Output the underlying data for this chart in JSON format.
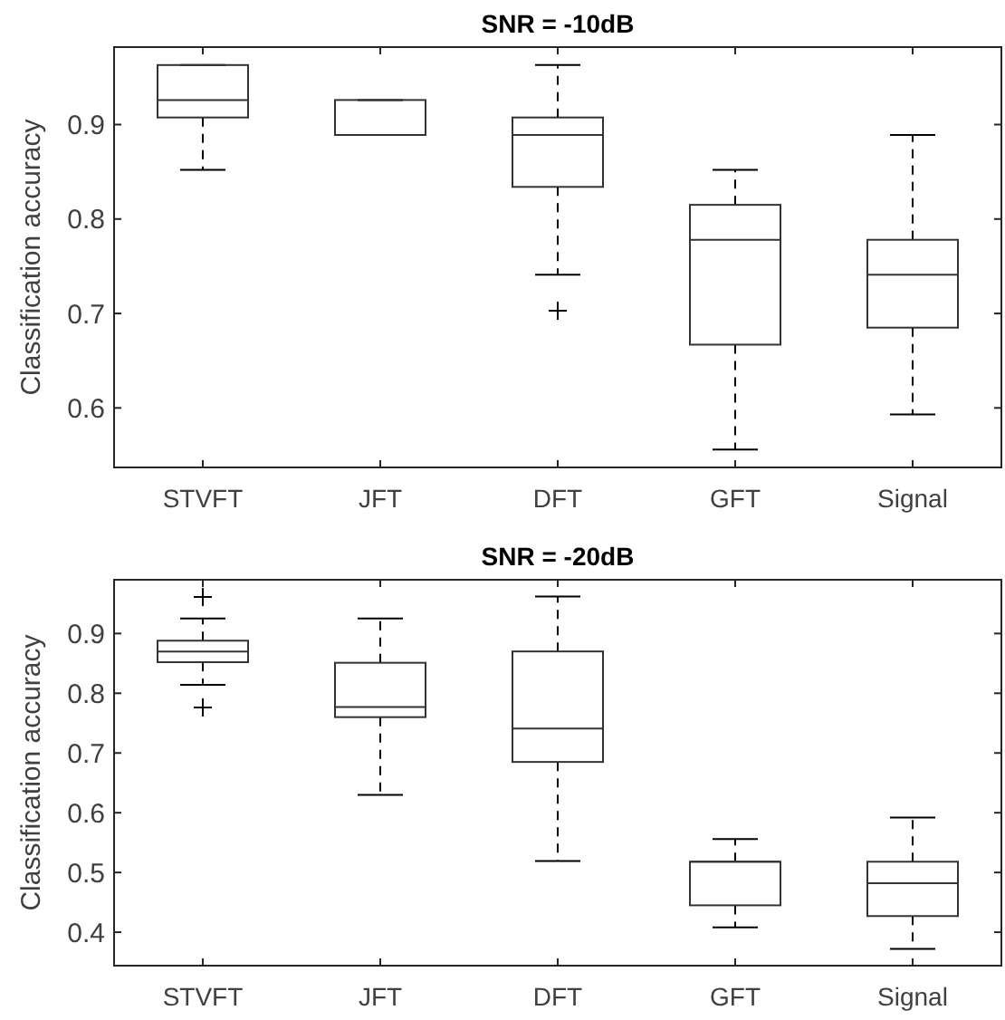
{
  "chart_data": [
    {
      "type": "box",
      "title": "SNR = -10dB",
      "ylabel": "Classification accuracy",
      "categories": [
        "STVFT",
        "JFT",
        "DFT",
        "GFT",
        "Signal"
      ],
      "ylim": [
        0.537,
        0.982
      ],
      "yticks": [
        {
          "value": 0.6,
          "label": "0.6"
        },
        {
          "value": 0.7,
          "label": "0.7"
        },
        {
          "value": 0.8,
          "label": "0.8"
        },
        {
          "value": 0.9,
          "label": "0.9"
        }
      ],
      "grid": false,
      "line_style": "dashed",
      "marker": "cross",
      "boxes": [
        {
          "low": 0.852,
          "q1": 0.9075,
          "median": 0.926,
          "q3": 0.963,
          "high": 0.963
        },
        {
          "low": 0.889,
          "q1": 0.889,
          "median": 0.889,
          "q3": 0.926,
          "high": 0.926
        },
        {
          "low": 0.741,
          "q1": 0.834,
          "median": 0.889,
          "q3": 0.9075,
          "high": 0.963,
          "outliers": [
            0.703
          ]
        },
        {
          "low": 0.556,
          "q1": 0.667,
          "median": 0.778,
          "q3": 0.815,
          "high": 0.852
        },
        {
          "low": 0.593,
          "q1": 0.685,
          "median": 0.741,
          "q3": 0.778,
          "high": 0.889
        }
      ]
    },
    {
      "type": "box",
      "title": "SNR = -20dB",
      "ylabel": "Classification accuracy",
      "categories": [
        "STVFT",
        "JFT",
        "DFT",
        "GFT",
        "Signal"
      ],
      "ylim": [
        0.344,
        0.99
      ],
      "yticks": [
        {
          "value": 0.4,
          "label": "0.4"
        },
        {
          "value": 0.5,
          "label": "0.5"
        },
        {
          "value": 0.6,
          "label": "0.6"
        },
        {
          "value": 0.7,
          "label": "0.7"
        },
        {
          "value": 0.8,
          "label": "0.8"
        },
        {
          "value": 0.9,
          "label": "0.9"
        }
      ],
      "grid": false,
      "line_style": "dashed",
      "marker": "cross",
      "boxes": [
        {
          "low": 0.814,
          "q1": 0.852,
          "median": 0.87,
          "q3": 0.888,
          "high": 0.925,
          "outliers": [
            0.961,
            0.776
          ]
        },
        {
          "low": 0.63,
          "q1": 0.76,
          "median": 0.777,
          "q3": 0.851,
          "high": 0.925
        },
        {
          "low": 0.519,
          "q1": 0.685,
          "median": 0.741,
          "q3": 0.87,
          "high": 0.962
        },
        {
          "low": 0.408,
          "q1": 0.445,
          "median": 0.518,
          "q3": 0.518,
          "high": 0.556
        },
        {
          "low": 0.372,
          "q1": 0.427,
          "median": 0.482,
          "q3": 0.518,
          "high": 0.592
        }
      ]
    }
  ]
}
